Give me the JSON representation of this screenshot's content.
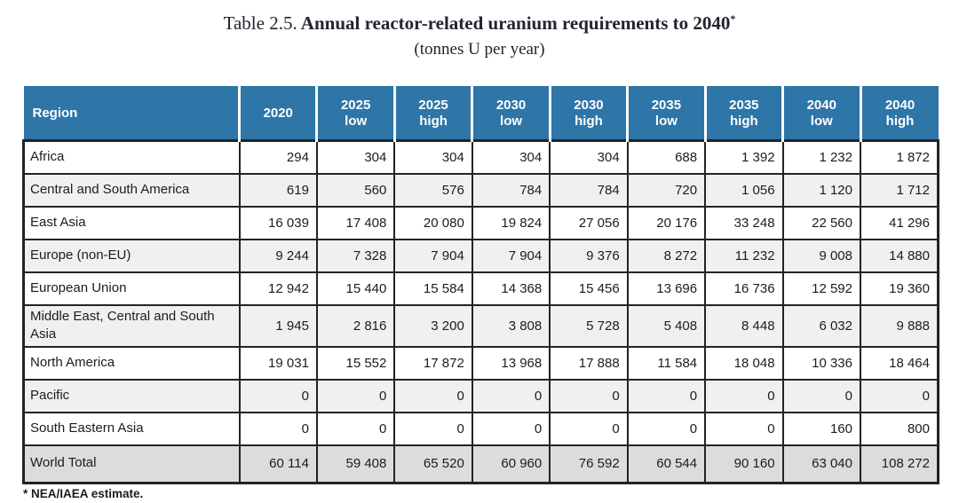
{
  "page": {
    "title_prefix": "Table 2.5.",
    "title_main": " Annual reactor-related uranium requirements to 2040",
    "title_note_marker": "*",
    "subtitle": "(tonnes U per year)",
    "footnote": "* NEA/IAEA estimate."
  },
  "table": {
    "region_header": "Region",
    "year_headers": [
      {
        "year": "2020",
        "case": ""
      },
      {
        "year": "2025",
        "case": "low"
      },
      {
        "year": "2025",
        "case": "high"
      },
      {
        "year": "2030",
        "case": "low"
      },
      {
        "year": "2030",
        "case": "high"
      },
      {
        "year": "2035",
        "case": "low"
      },
      {
        "year": "2035",
        "case": "high"
      },
      {
        "year": "2040",
        "case": "low"
      },
      {
        "year": "2040",
        "case": "high"
      }
    ],
    "rows": [
      {
        "region": "Africa",
        "shaded": false,
        "values": [
          "294",
          "304",
          "304",
          "304",
          "304",
          "688",
          "1 392",
          "1 232",
          "1 872"
        ]
      },
      {
        "region": "Central and South America",
        "shaded": true,
        "values": [
          "619",
          "560",
          "576",
          "784",
          "784",
          "720",
          "1 056",
          "1 120",
          "1 712"
        ]
      },
      {
        "region": "East Asia",
        "shaded": false,
        "values": [
          "16 039",
          "17 408",
          "20 080",
          "19 824",
          "27 056",
          "20 176",
          "33 248",
          "22 560",
          "41 296"
        ]
      },
      {
        "region": "Europe (non-EU)",
        "shaded": true,
        "values": [
          "9 244",
          "7 328",
          "7 904",
          "7 904",
          "9 376",
          "8 272",
          "11 232",
          "9 008",
          "14 880"
        ]
      },
      {
        "region": "European Union",
        "shaded": false,
        "values": [
          "12 942",
          "15 440",
          "15 584",
          "14 368",
          "15 456",
          "13 696",
          "16 736",
          "12 592",
          "19 360"
        ]
      },
      {
        "region": "Middle East, Central and South Asia",
        "shaded": true,
        "values": [
          "1 945",
          "2 816",
          "3 200",
          "3 808",
          "5 728",
          "5 408",
          "8 448",
          "6 032",
          "9 888"
        ]
      },
      {
        "region": "North America",
        "shaded": false,
        "values": [
          "19 031",
          "15 552",
          "17 872",
          "13 968",
          "17 888",
          "11 584",
          "18 048",
          "10 336",
          "18 464"
        ]
      },
      {
        "region": "Pacific",
        "shaded": true,
        "values": [
          "0",
          "0",
          "0",
          "0",
          "0",
          "0",
          "0",
          "0",
          "0"
        ]
      },
      {
        "region": "South Eastern Asia",
        "shaded": false,
        "values": [
          "0",
          "0",
          "0",
          "0",
          "0",
          "0",
          "0",
          "160",
          "800"
        ]
      }
    ],
    "total_row": {
      "region": "World Total",
      "values": [
        "60 114",
        "59 408",
        "65 520",
        "60 960",
        "76 592",
        "60 544",
        "90 160",
        "63 040",
        "108 272"
      ]
    }
  },
  "colors": {
    "header_bg": "#2e75a8",
    "header_text": "#ffffff",
    "row_shaded_bg": "#f0f0f0",
    "total_row_bg": "#dcdcdc",
    "border": "#232323",
    "text": "#1b1b24"
  }
}
